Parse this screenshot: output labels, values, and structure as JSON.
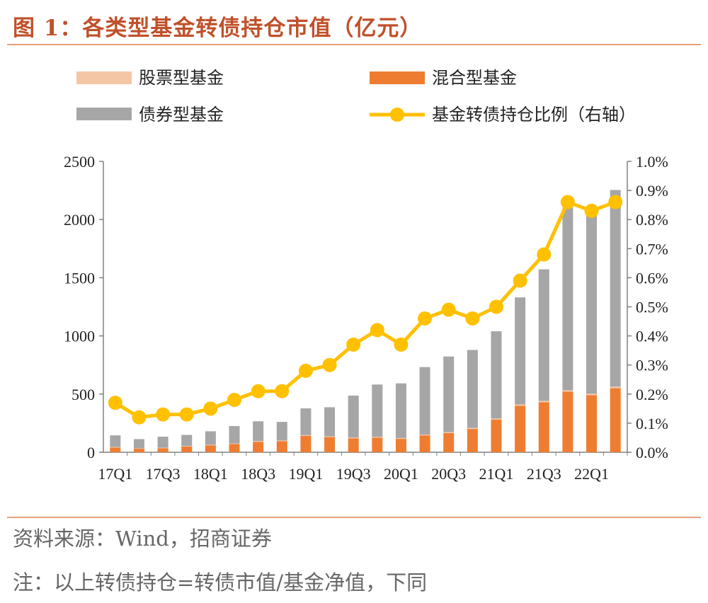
{
  "title": "图 1：各类型基金转债持仓市值（亿元）",
  "source": "资料来源：Wind，招商证券",
  "note": "注：以上转债持仓=转债市值/基金净值，下同",
  "colors": {
    "title": "#c0502a",
    "rule": "#e8a07a",
    "stock": "#f5c6a5",
    "mixed": "#ee7d31",
    "bond": "#a6a6a6",
    "ratio": "#ffc000",
    "axis": "#808080"
  },
  "chart_data": {
    "type": "bar",
    "stacked": true,
    "categories": [
      "17Q1",
      "17Q2",
      "17Q3",
      "17Q4",
      "18Q1",
      "18Q2",
      "18Q3",
      "18Q4",
      "19Q1",
      "19Q2",
      "19Q3",
      "19Q4",
      "20Q1",
      "20Q2",
      "20Q3",
      "20Q4",
      "21Q1",
      "21Q2",
      "21Q3",
      "21Q4",
      "22Q1",
      "22Q2"
    ],
    "x_tick_labels": [
      "17Q1",
      "17Q3",
      "18Q1",
      "18Q3",
      "19Q1",
      "19Q3",
      "20Q1",
      "20Q3",
      "21Q1",
      "21Q3",
      "22Q1"
    ],
    "left_axis": {
      "ylim": [
        0,
        2500
      ],
      "ticks": [
        "0",
        "500",
        "1000",
        "1500",
        "2000",
        "2500"
      ]
    },
    "right_axis": {
      "ylim": [
        0,
        1.0
      ],
      "ticks": [
        "0.0%",
        "0.1%",
        "0.2%",
        "0.3%",
        "0.4%",
        "0.5%",
        "0.6%",
        "0.7%",
        "0.8%",
        "0.9%",
        "1.0%"
      ]
    },
    "series": [
      {
        "name": "股票型基金",
        "kind": "bar",
        "values": [
          5,
          3,
          4,
          4,
          5,
          5,
          6,
          6,
          7,
          7,
          7,
          7,
          7,
          7,
          8,
          9,
          10,
          11,
          12,
          13,
          13,
          14
        ]
      },
      {
        "name": "混合型基金",
        "kind": "bar",
        "values": [
          40,
          30,
          35,
          50,
          60,
          70,
          90,
          95,
          140,
          130,
          120,
          125,
          115,
          145,
          165,
          200,
          280,
          400,
          430,
          520,
          490,
          550
        ]
      },
      {
        "name": "债券型基金",
        "kind": "bar",
        "values": [
          100,
          80,
          95,
          95,
          115,
          150,
          170,
          160,
          230,
          250,
          360,
          450,
          470,
          580,
          650,
          670,
          750,
          920,
          1130,
          1570,
          1530,
          1690
        ]
      },
      {
        "name": "基金转债持仓比例（右轴）",
        "kind": "line",
        "axis": "right",
        "values": [
          0.17,
          0.12,
          0.13,
          0.13,
          0.15,
          0.18,
          0.21,
          0.21,
          0.28,
          0.3,
          0.37,
          0.42,
          0.37,
          0.46,
          0.49,
          0.46,
          0.5,
          0.59,
          0.68,
          0.86,
          0.83,
          0.86
        ]
      }
    ],
    "legend_position": "top"
  }
}
